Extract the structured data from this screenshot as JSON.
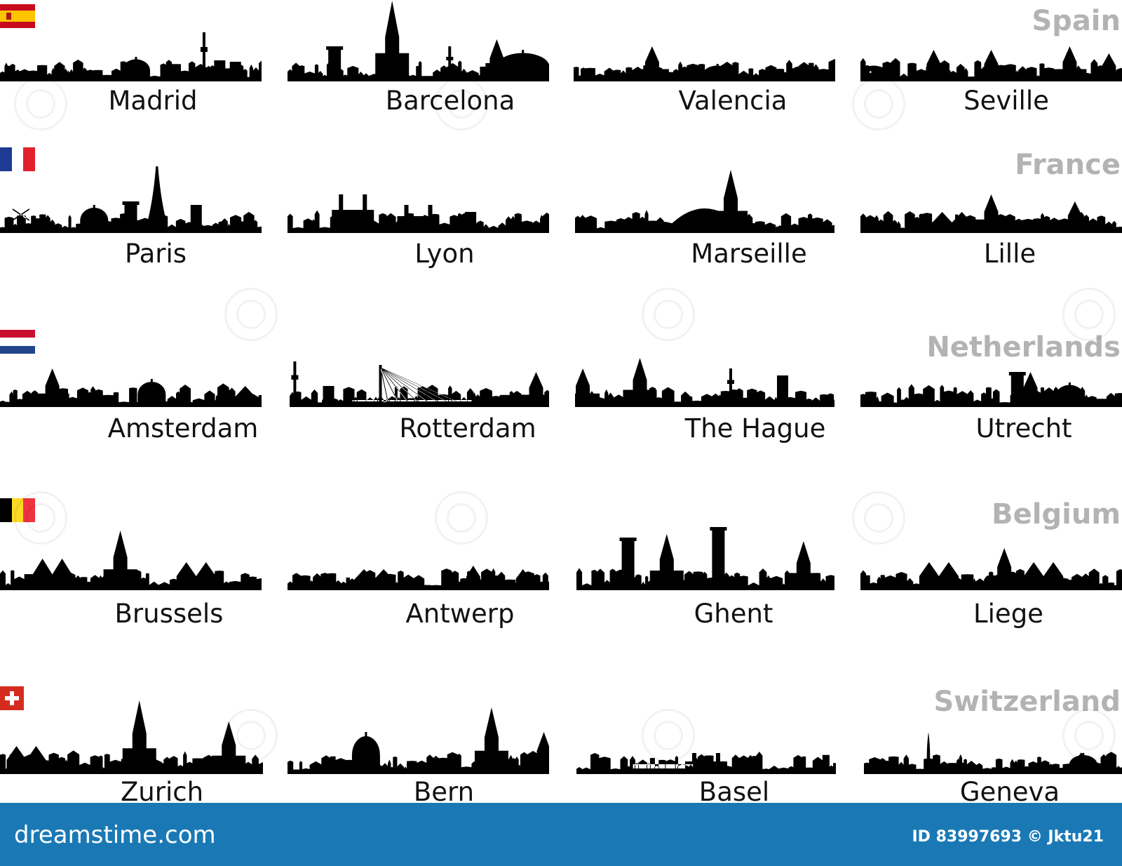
{
  "countries": [
    {
      "name": "Spain",
      "cities": [
        "Madrid",
        "Barcelona",
        "Valencia",
        "Seville"
      ]
    },
    {
      "name": "France",
      "cities": [
        "Paris",
        "Lyon",
        "Marseille",
        "Lille"
      ]
    },
    {
      "name": "Netherlands",
      "cities": [
        "Amsterdam",
        "Rotterdam",
        "The Hague",
        "Utrecht"
      ]
    },
    {
      "name": "Belgium",
      "cities": [
        "Brussels",
        "Antwerp",
        "Ghent",
        "Liege"
      ]
    },
    {
      "name": "Switzerland",
      "cities": [
        "Zurich",
        "Bern",
        "Basel",
        "Geneva"
      ]
    }
  ],
  "footer": {
    "brand": "dreamstime.com",
    "credit": "ID 83997693 © Jktu21",
    "color": "#1a79b5"
  },
  "colors": {
    "country_label": "#b3b3b3",
    "silhouette": "#000000",
    "city_label": "#111111"
  },
  "icons": [
    "spain-flag-icon",
    "france-flag-icon",
    "netherlands-flag-icon",
    "belgium-flag-icon",
    "switzerland-flag-icon"
  ]
}
